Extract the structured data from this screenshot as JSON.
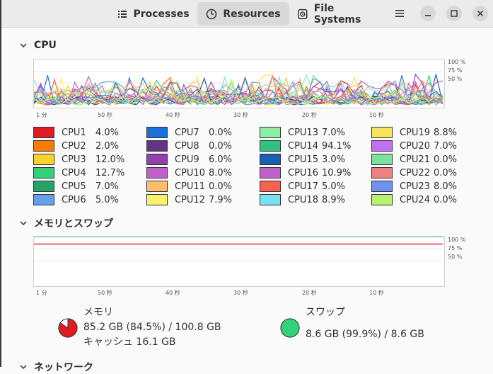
{
  "header": {
    "tabs": [
      {
        "label": "Processes",
        "icon": "list-icon",
        "active": false
      },
      {
        "label": "Resources",
        "icon": "gauge-icon",
        "active": true
      },
      {
        "label": "File Systems",
        "icon": "disk-icon",
        "active": false
      }
    ]
  },
  "cpu": {
    "title": "CPU",
    "percent_labels": [
      "100 %",
      "75 %",
      "50 %"
    ],
    "time_labels": [
      "1 分",
      "50 秒",
      "40 秒",
      "30 秒",
      "20 秒",
      "10 秒"
    ],
    "cores": [
      {
        "label": "CPU1",
        "value": "4.0%",
        "color": "#e01b24"
      },
      {
        "label": "CPU2",
        "value": "2.0%",
        "color": "#ff7800"
      },
      {
        "label": "CPU3",
        "value": "12.0%",
        "color": "#f6d32d"
      },
      {
        "label": "CPU4",
        "value": "12.7%",
        "color": "#33d17a"
      },
      {
        "label": "CPU5",
        "value": "7.0%",
        "color": "#26a269"
      },
      {
        "label": "CPU6",
        "value": "5.0%",
        "color": "#62a0ea"
      },
      {
        "label": "CPU7",
        "value": "0.0%",
        "color": "#1c71d8"
      },
      {
        "label": "CPU8",
        "value": "0.0%",
        "color": "#613583"
      },
      {
        "label": "CPU9",
        "value": "6.0%",
        "color": "#9141ac"
      },
      {
        "label": "CPU10",
        "value": "8.0%",
        "color": "#c061cb"
      },
      {
        "label": "CPU11",
        "value": "0.0%",
        "color": "#ffbe6f"
      },
      {
        "label": "CPU12",
        "value": "7.9%",
        "color": "#f9f06b"
      },
      {
        "label": "CPU13",
        "value": "7.0%",
        "color": "#8ff0a4"
      },
      {
        "label": "CPU14",
        "value": "94.1%",
        "color": "#2ec27e"
      },
      {
        "label": "CPU15",
        "value": "3.0%",
        "color": "#1a5fb4"
      },
      {
        "label": "CPU16",
        "value": "10.9%",
        "color": "#c061cb"
      },
      {
        "label": "CPU17",
        "value": "5.0%",
        "color": "#f66151"
      },
      {
        "label": "CPU18",
        "value": "8.9%",
        "color": "#78e0f0"
      },
      {
        "label": "CPU19",
        "value": "8.8%",
        "color": "#f8e45c"
      },
      {
        "label": "CPU20",
        "value": "7.0%",
        "color": "#c070f0"
      },
      {
        "label": "CPU21",
        "value": "0.0%",
        "color": "#7ee0a0"
      },
      {
        "label": "CPU22",
        "value": "0.0%",
        "color": "#f08080"
      },
      {
        "label": "CPU23",
        "value": "8.0%",
        "color": "#7090f0"
      },
      {
        "label": "CPU24",
        "value": "0.0%",
        "color": "#b8f070"
      }
    ]
  },
  "memory": {
    "title": "メモリとスワップ",
    "percent_labels": [
      "100 %",
      "75 %",
      "50 %"
    ],
    "time_labels": [
      "1 分",
      "50 秒",
      "40 秒",
      "30 秒",
      "20 秒",
      "10 秒"
    ],
    "memory_label": "メモリ",
    "memory_value": "85.2 GB (84.5%) / 100.8 GB",
    "cache_value": "キャッシュ 16.1 GB",
    "memory_color": "#e01b24",
    "memory_fraction": 0.845,
    "swap_label": "スワップ",
    "swap_value": "8.6 GB (99.9%) / 8.6 GB",
    "swap_color": "#33d17a",
    "swap_fraction": 0.999
  },
  "network": {
    "title": "ネットワーク"
  }
}
